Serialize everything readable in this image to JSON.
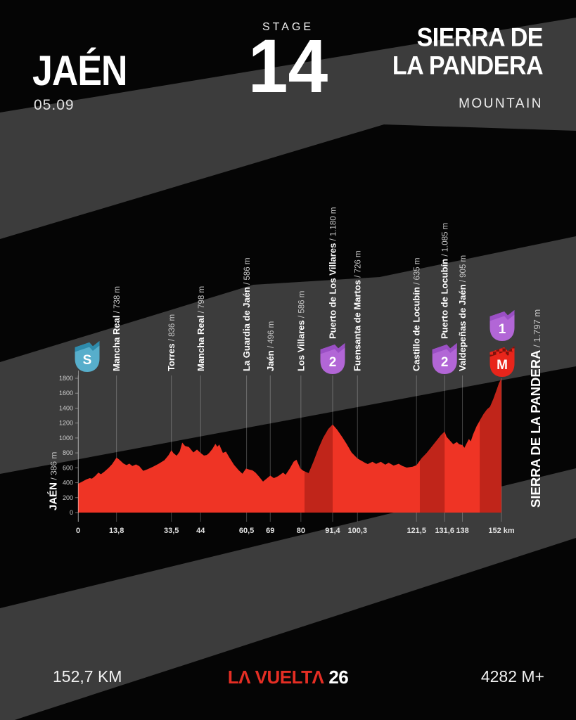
{
  "header": {
    "start_city": "JAÉN",
    "date": "05.09",
    "stage_label": "STAGE",
    "stage_number": "14",
    "finish_line1": "SIERRA DE",
    "finish_line2": "LA PANDERA",
    "category": "MOUNTAIN"
  },
  "footer": {
    "distance": "152,7 KM",
    "logo_text": "LA VUELTA",
    "logo_display": "LΛ VUELTΛ",
    "logo_number": "26",
    "elevation_gain": "4282 M+"
  },
  "colors": {
    "background": "#050505",
    "stripe": "#3c3c3c",
    "profile_red": "#ef3425",
    "climb_dark_red": "#c0251a",
    "grid_line": "rgba(255,255,255,0.25)",
    "axis_line": "rgba(255,255,255,0.4)",
    "label_white": "#ffffff",
    "label_muted": "#c4c4c4",
    "tick_label": "#e3e3e3",
    "y_tick_label": "#cfcfcf",
    "start_badge": "#57aecb",
    "start_badge_dark": "#2e8bac",
    "category_badge": "#b266d6",
    "category_badge_dark": "#9a4fc4",
    "finish_badge": "#e8251b",
    "finish_badge_dark": "#7e120c",
    "logo_red": "#e52e24"
  },
  "chart_data": {
    "type": "area",
    "title": "Stage 14 elevation profile",
    "xlabel": "km",
    "ylabel": "m",
    "xlim": [
      0,
      152
    ],
    "ylim": [
      0,
      1800
    ],
    "grid": "vertical-waypoint-lines",
    "start": {
      "name": "JAÉN",
      "elev": "386 m",
      "elev_m": 386,
      "badge": "S"
    },
    "finish": {
      "name": "SIERRA DE LA PANDERA",
      "elev": "1.797 m",
      "elev_m": 1797,
      "km": 152,
      "badges": [
        "1",
        "M"
      ]
    },
    "waypoints": [
      {
        "km": 13.8,
        "name": "Mancha Real",
        "elev": "738 m"
      },
      {
        "km": 33.5,
        "name": "Torres",
        "elev": "836 m"
      },
      {
        "km": 44,
        "name": "Mancha Real",
        "elev": "798 m"
      },
      {
        "km": 60.5,
        "name": "La Guardia de Jaén",
        "elev": "586 m"
      },
      {
        "km": 69,
        "name": "Jaén",
        "elev": "496 m"
      },
      {
        "km": 80,
        "name": "Los Villares",
        "elev": "586 m"
      },
      {
        "km": 91.4,
        "name": "Puerto de Los Villares",
        "elev": "1.180 m",
        "badge": "2"
      },
      {
        "km": 100.3,
        "name": "Fuensanta de Martos",
        "elev": "726 m"
      },
      {
        "km": 121.5,
        "name": "Castillo de Locubín",
        "elev": "635 m"
      },
      {
        "km": 131.6,
        "name": "Puerto de Locubín",
        "elev": "1.085 m",
        "badge": "2"
      },
      {
        "km": 138,
        "name": "Valdepeñas de Jaén",
        "elev": "905 m"
      }
    ],
    "climbs": [
      {
        "name": "Puerto de Los Villares",
        "category": "2",
        "start_km": 81.3,
        "summit_km": 91.4
      },
      {
        "name": "Puerto de Locubín",
        "category": "2",
        "start_km": 122.7,
        "summit_km": 131.6
      },
      {
        "name": "Sierra de La Pandera",
        "category": "1",
        "start_km": 144.2,
        "summit_km": 152
      }
    ],
    "x_ticks": [
      {
        "km": 0,
        "label": "0"
      },
      {
        "km": 13.8,
        "label": "13,8"
      },
      {
        "km": 33.5,
        "label": "33,5"
      },
      {
        "km": 44,
        "label": "44"
      },
      {
        "km": 60.5,
        "label": "60,5"
      },
      {
        "km": 69,
        "label": "69"
      },
      {
        "km": 80,
        "label": "80"
      },
      {
        "km": 91.4,
        "label": "91,4"
      },
      {
        "km": 100.3,
        "label": "100,3"
      },
      {
        "km": 121.5,
        "label": "121,5"
      },
      {
        "km": 131.6,
        "label": "131,6"
      },
      {
        "km": 138,
        "label": "138"
      },
      {
        "km": 152,
        "label": "152 km"
      }
    ],
    "y_ticks": [
      0,
      200,
      400,
      600,
      800,
      1000,
      1200,
      1400,
      1600,
      1800
    ],
    "points": [
      [
        0,
        386
      ],
      [
        1.5,
        415
      ],
      [
        3,
        446
      ],
      [
        4.2,
        462
      ],
      [
        5,
        455
      ],
      [
        6.2,
        492
      ],
      [
        7.3,
        536
      ],
      [
        8.2,
        514
      ],
      [
        9.5,
        550
      ],
      [
        11,
        600
      ],
      [
        12.2,
        648
      ],
      [
        13.8,
        738
      ],
      [
        14.8,
        710
      ],
      [
        16.3,
        658
      ],
      [
        17.4,
        636
      ],
      [
        18.4,
        656
      ],
      [
        19.5,
        624
      ],
      [
        20.8,
        646
      ],
      [
        22,
        622
      ],
      [
        23.4,
        560
      ],
      [
        25,
        582
      ],
      [
        27,
        616
      ],
      [
        29,
        656
      ],
      [
        31,
        702
      ],
      [
        32.5,
        770
      ],
      [
        33.5,
        836
      ],
      [
        34.3,
        795
      ],
      [
        35.4,
        762
      ],
      [
        36.5,
        820
      ],
      [
        37.4,
        938
      ],
      [
        38.4,
        892
      ],
      [
        39.8,
        878
      ],
      [
        41.4,
        806
      ],
      [
        42.7,
        844
      ],
      [
        44,
        798
      ],
      [
        45.2,
        764
      ],
      [
        46.2,
        772
      ],
      [
        47,
        796
      ],
      [
        48.2,
        852
      ],
      [
        49.3,
        922
      ],
      [
        50,
        882
      ],
      [
        50.7,
        912
      ],
      [
        52,
        800
      ],
      [
        53.1,
        816
      ],
      [
        54.4,
        732
      ],
      [
        56,
        640
      ],
      [
        57.7,
        566
      ],
      [
        59,
        520
      ],
      [
        60.3,
        590
      ],
      [
        61.5,
        576
      ],
      [
        62.6,
        566
      ],
      [
        63.7,
        536
      ],
      [
        65,
        482
      ],
      [
        66.4,
        416
      ],
      [
        67.9,
        462
      ],
      [
        69,
        496
      ],
      [
        70.3,
        462
      ],
      [
        71.8,
        488
      ],
      [
        73.6,
        536
      ],
      [
        74.5,
        506
      ],
      [
        76,
        590
      ],
      [
        77.4,
        682
      ],
      [
        78.4,
        709
      ],
      [
        79.8,
        592
      ],
      [
        80.9,
        560
      ],
      [
        82.8,
        528
      ],
      [
        84.6,
        690
      ],
      [
        86.2,
        848
      ],
      [
        88,
        1002
      ],
      [
        89.8,
        1118
      ],
      [
        91.4,
        1180
      ],
      [
        93,
        1112
      ],
      [
        94.8,
        1014
      ],
      [
        96.4,
        922
      ],
      [
        98.2,
        806
      ],
      [
        100.3,
        726
      ],
      [
        101.5,
        700
      ],
      [
        103,
        668
      ],
      [
        104,
        650
      ],
      [
        105.7,
        680
      ],
      [
        107,
        652
      ],
      [
        108.7,
        680
      ],
      [
        110.3,
        642
      ],
      [
        111.5,
        668
      ],
      [
        113.3,
        630
      ],
      [
        115.1,
        654
      ],
      [
        116.4,
        626
      ],
      [
        118,
        603
      ],
      [
        120.1,
        614
      ],
      [
        121.5,
        635
      ],
      [
        123.4,
        730
      ],
      [
        125.1,
        796
      ],
      [
        126.7,
        870
      ],
      [
        128.4,
        950
      ],
      [
        130.2,
        1035
      ],
      [
        131.6,
        1085
      ],
      [
        132.3,
        1016
      ],
      [
        133.5,
        966
      ],
      [
        134.7,
        916
      ],
      [
        136,
        946
      ],
      [
        136.8,
        916
      ],
      [
        138,
        905
      ],
      [
        138.7,
        868
      ],
      [
        140.3,
        986
      ],
      [
        141,
        956
      ],
      [
        141.8,
        1046
      ],
      [
        143.1,
        1160
      ],
      [
        144.3,
        1238
      ],
      [
        145.6,
        1322
      ],
      [
        146.8,
        1382
      ],
      [
        147.9,
        1418
      ],
      [
        149.1,
        1522
      ],
      [
        150.4,
        1658
      ],
      [
        151.1,
        1732
      ],
      [
        152,
        1797
      ]
    ]
  }
}
